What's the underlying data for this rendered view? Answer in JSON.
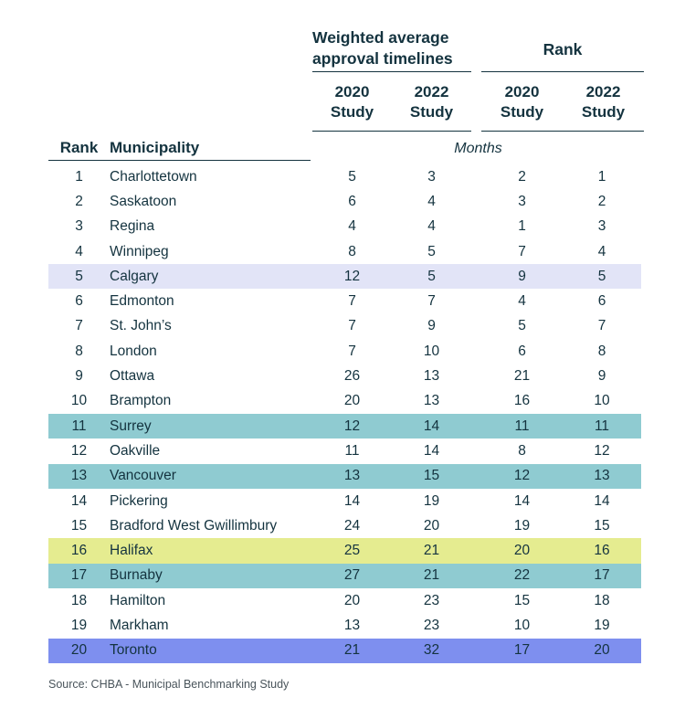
{
  "colors": {
    "background": "#FFFFFF",
    "text": "#14333F",
    "rule": "#14333F",
    "source_text": "#49545B",
    "highlights": {
      "lavender": "#E2E4F7",
      "teal": "#8FCBD1",
      "yellow": "#E5EC90",
      "blue": "#7E8FEF"
    }
  },
  "header": {
    "timelines_group_title": "Weighted average approval timelines",
    "rank_group_title": "Rank",
    "timelines_sub_2020": "2020 Study",
    "timelines_sub_2022": "2022 Study",
    "rank_sub_2020": "2020 Study",
    "rank_sub_2022": "2022 Study",
    "rank_column_label": "Rank",
    "municipality_column_label": "Municipality",
    "units_label": "Months"
  },
  "chart_data": {
    "type": "table",
    "title": "",
    "column_groups": [
      "Weighted average approval timelines",
      "Rank"
    ],
    "columns": [
      "Rank",
      "Municipality",
      "2020 Study (months)",
      "2022 Study (months)",
      "2020 Study (rank)",
      "2022 Study (rank)"
    ],
    "units": "Months",
    "rows": [
      {
        "rank": 1,
        "municipality": "Charlottetown",
        "timeline_2020": 5,
        "timeline_2022": 3,
        "rank_2020": 2,
        "rank_2022": 1,
        "highlight": null
      },
      {
        "rank": 2,
        "municipality": "Saskatoon",
        "timeline_2020": 6,
        "timeline_2022": 4,
        "rank_2020": 3,
        "rank_2022": 2,
        "highlight": null
      },
      {
        "rank": 3,
        "municipality": "Regina",
        "timeline_2020": 4,
        "timeline_2022": 4,
        "rank_2020": 1,
        "rank_2022": 3,
        "highlight": null
      },
      {
        "rank": 4,
        "municipality": "Winnipeg",
        "timeline_2020": 8,
        "timeline_2022": 5,
        "rank_2020": 7,
        "rank_2022": 4,
        "highlight": null
      },
      {
        "rank": 5,
        "municipality": "Calgary",
        "timeline_2020": 12,
        "timeline_2022": 5,
        "rank_2020": 9,
        "rank_2022": 5,
        "highlight": "lavender"
      },
      {
        "rank": 6,
        "municipality": "Edmonton",
        "timeline_2020": 7,
        "timeline_2022": 7,
        "rank_2020": 4,
        "rank_2022": 6,
        "highlight": null
      },
      {
        "rank": 7,
        "municipality": "St. John’s",
        "timeline_2020": 7,
        "timeline_2022": 9,
        "rank_2020": 5,
        "rank_2022": 7,
        "highlight": null
      },
      {
        "rank": 8,
        "municipality": "London",
        "timeline_2020": 7,
        "timeline_2022": 10,
        "rank_2020": 6,
        "rank_2022": 8,
        "highlight": null
      },
      {
        "rank": 9,
        "municipality": "Ottawa",
        "timeline_2020": 26,
        "timeline_2022": 13,
        "rank_2020": 21,
        "rank_2022": 9,
        "highlight": null
      },
      {
        "rank": 10,
        "municipality": "Brampton",
        "timeline_2020": 20,
        "timeline_2022": 13,
        "rank_2020": 16,
        "rank_2022": 10,
        "highlight": null
      },
      {
        "rank": 11,
        "municipality": "Surrey",
        "timeline_2020": 12,
        "timeline_2022": 14,
        "rank_2020": 11,
        "rank_2022": 11,
        "highlight": "teal"
      },
      {
        "rank": 12,
        "municipality": "Oakville",
        "timeline_2020": 11,
        "timeline_2022": 14,
        "rank_2020": 8,
        "rank_2022": 12,
        "highlight": null
      },
      {
        "rank": 13,
        "municipality": "Vancouver",
        "timeline_2020": 13,
        "timeline_2022": 15,
        "rank_2020": 12,
        "rank_2022": 13,
        "highlight": "teal"
      },
      {
        "rank": 14,
        "municipality": "Pickering",
        "timeline_2020": 14,
        "timeline_2022": 19,
        "rank_2020": 14,
        "rank_2022": 14,
        "highlight": null
      },
      {
        "rank": 15,
        "municipality": "Bradford West Gwillimbury",
        "timeline_2020": 24,
        "timeline_2022": 20,
        "rank_2020": 19,
        "rank_2022": 15,
        "highlight": null
      },
      {
        "rank": 16,
        "municipality": "Halifax",
        "timeline_2020": 25,
        "timeline_2022": 21,
        "rank_2020": 20,
        "rank_2022": 16,
        "highlight": "yellow"
      },
      {
        "rank": 17,
        "municipality": "Burnaby",
        "timeline_2020": 27,
        "timeline_2022": 21,
        "rank_2020": 22,
        "rank_2022": 17,
        "highlight": "teal"
      },
      {
        "rank": 18,
        "municipality": "Hamilton",
        "timeline_2020": 20,
        "timeline_2022": 23,
        "rank_2020": 15,
        "rank_2022": 18,
        "highlight": null
      },
      {
        "rank": 19,
        "municipality": "Markham",
        "timeline_2020": 13,
        "timeline_2022": 23,
        "rank_2020": 10,
        "rank_2022": 19,
        "highlight": null
      },
      {
        "rank": 20,
        "municipality": "Toronto",
        "timeline_2020": 21,
        "timeline_2022": 32,
        "rank_2020": 17,
        "rank_2022": 20,
        "highlight": "blue"
      }
    ]
  },
  "source": "Source: CHBA - Municipal Benchmarking Study"
}
